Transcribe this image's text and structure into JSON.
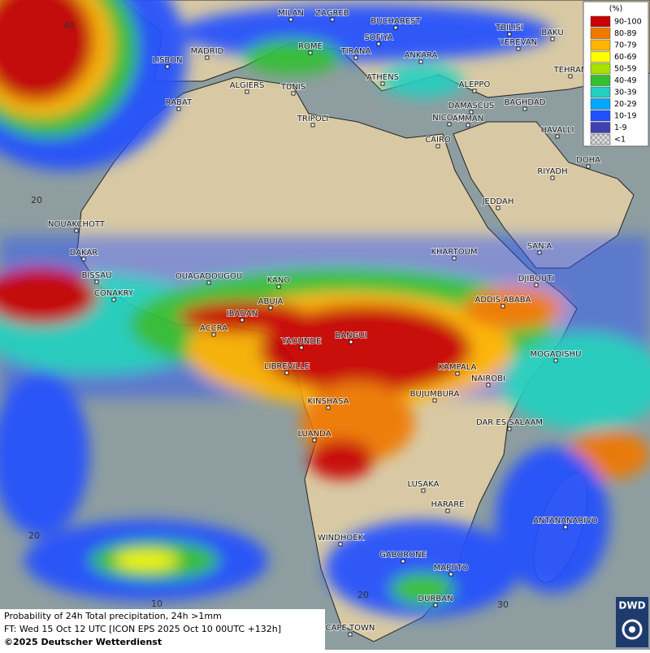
{
  "legend": {
    "unit": "(%)",
    "classes": [
      {
        "label": "90-100",
        "color": "#c80000"
      },
      {
        "label": "80-89",
        "color": "#f07800"
      },
      {
        "label": "70-79",
        "color": "#ffb400"
      },
      {
        "label": "60-69",
        "color": "#ffff00"
      },
      {
        "label": "50-59",
        "color": "#a8e000"
      },
      {
        "label": "40-49",
        "color": "#30c030"
      },
      {
        "label": "30-39",
        "color": "#20d0c0"
      },
      {
        "label": "20-29",
        "color": "#00a8ff"
      },
      {
        "label": "10-19",
        "color": "#2050ff"
      },
      {
        "label": "1-9",
        "color": "#4040b0"
      },
      {
        "label": "<1",
        "color": "#bdbdbd"
      }
    ]
  },
  "cities": [
    "MILAN",
    "ZAGREB",
    "BUCHAREST",
    "TBILISI",
    "BAKU",
    "SOFIYA",
    "YEREVAN",
    "ROME",
    "TIRANA",
    "MADRID",
    "ANKARA",
    "LISBON",
    "TEHRAN",
    "ATHENS",
    "ALGIERS",
    "TUNIS",
    "ALEPPO",
    "RABAT",
    "NICOSIA",
    "BAGHDAD",
    "DAMASCUS",
    "TRIPOLI",
    "AMMAN",
    "HAVALLI",
    "CAIRO",
    "DOHA",
    "RIYADH",
    "JEDDAH",
    "NOUAKCHOTT",
    "SAN'A",
    "KHARTOUM",
    "DAKAR",
    "BISSAU",
    "OUAGADOUGOU",
    "DJIBOUTI",
    "KANO",
    "CONAKRY",
    "ABUJA",
    "ADDIS ABABA",
    "IBADAN",
    "ACCRA",
    "BANGUI",
    "YAOUNDE",
    "MOGADISHU",
    "LIBREVILLE",
    "KAMPALA",
    "NAIROBI",
    "BUJUMBURA",
    "KINSHASA",
    "DAR ES SALAAM",
    "LUANDA",
    "LUSAKA",
    "HARARE",
    "ANTANANARIVO",
    "WINDHOEK",
    "GABORONE",
    "MAPUTO",
    "DURBAN",
    "CAPE TOWN"
  ],
  "grid_labels": [
    "40",
    "20",
    "20",
    "10",
    "20",
    "30"
  ],
  "footer": {
    "title": "Probability of 24h Total precipitation, 24h >1mm",
    "forecast": "FT: Wed 15 Oct 12 UTC [ICON EPS 2025 Oct 10 00UTC +132h]",
    "copyright": "©2025 Deutscher Wetterdienst"
  },
  "logo": "DWD"
}
